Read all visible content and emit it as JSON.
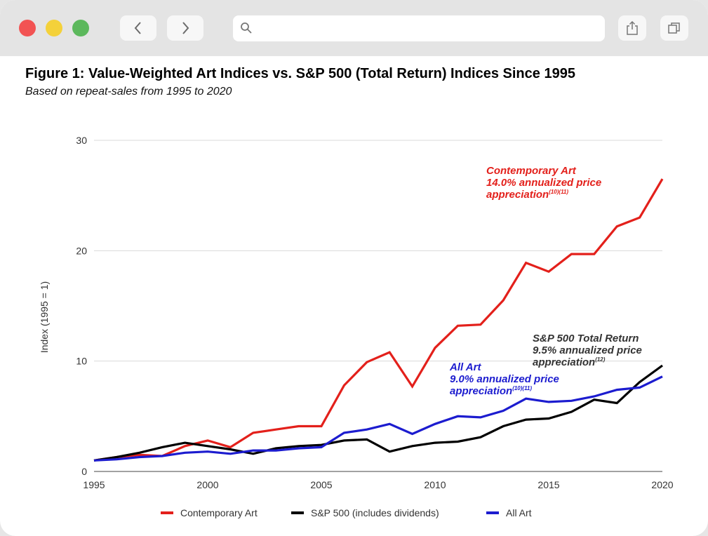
{
  "browser": {
    "address_value": "",
    "icons": {
      "back": "chevron-left-icon",
      "forward": "chevron-right-icon",
      "search": "search-icon",
      "share": "share-icon",
      "tabs": "tabs-icon"
    }
  },
  "figure": {
    "title": "Figure 1: Value-Weighted Art Indices vs. S&P 500 (Total Return) Indices Since 1995",
    "subtitle": "Based on repeat-sales from 1995 to 2020"
  },
  "chart_data": {
    "type": "line",
    "ylabel": "Index (1995 = 1)",
    "xlim": [
      1995,
      2020
    ],
    "ylim": [
      0,
      30
    ],
    "x_ticks": [
      1995,
      2000,
      2005,
      2010,
      2015,
      2020
    ],
    "y_ticks": [
      0,
      10,
      20,
      30
    ],
    "grid": true,
    "legend_position": "bottom-center",
    "x": [
      1995,
      1996,
      1997,
      1998,
      1999,
      2000,
      2001,
      2002,
      2003,
      2004,
      2005,
      2006,
      2007,
      2008,
      2009,
      2010,
      2011,
      2012,
      2013,
      2014,
      2015,
      2016,
      2017,
      2018,
      2019,
      2020
    ],
    "series": [
      {
        "name": "Contemporary Art",
        "color": "#e3201b",
        "values": [
          1.0,
          1.3,
          1.5,
          1.4,
          2.3,
          2.8,
          2.2,
          3.5,
          3.8,
          4.1,
          4.1,
          7.8,
          9.9,
          10.8,
          7.7,
          11.2,
          13.2,
          13.3,
          15.5,
          18.9,
          18.1,
          19.7,
          19.7,
          22.2,
          23.0,
          26.5
        ]
      },
      {
        "name": "S&P 500 (includes dividends)",
        "color": "#000000",
        "values": [
          1.0,
          1.3,
          1.7,
          2.2,
          2.6,
          2.3,
          2.0,
          1.6,
          2.1,
          2.3,
          2.4,
          2.8,
          2.9,
          1.8,
          2.3,
          2.6,
          2.7,
          3.1,
          4.1,
          4.7,
          4.8,
          5.4,
          6.5,
          6.2,
          8.1,
          9.6
        ]
      },
      {
        "name": "All Art",
        "color": "#1c1ccf",
        "values": [
          1.0,
          1.1,
          1.3,
          1.4,
          1.7,
          1.8,
          1.6,
          1.9,
          1.9,
          2.1,
          2.2,
          3.5,
          3.8,
          4.3,
          3.4,
          4.3,
          5.0,
          4.9,
          5.5,
          6.6,
          6.3,
          6.4,
          6.8,
          7.4,
          7.6,
          8.6
        ]
      }
    ],
    "annotations": [
      {
        "series": "Contemporary Art",
        "color": "#e3201b",
        "lines": [
          "Contemporary Art",
          "14.0% annualized price",
          "appreciation"
        ],
        "superscript": "(10)(11)"
      },
      {
        "series": "S&P 500 (includes dividends)",
        "color": "#333333",
        "lines": [
          "S&P 500 Total Return",
          "9.5% annualized price",
          "appreciation"
        ],
        "superscript": "(12)"
      },
      {
        "series": "All Art",
        "color": "#1c1ccf",
        "lines": [
          "All Art",
          "9.0% annualized price",
          "appreciation"
        ],
        "superscript": "(10)(11)"
      }
    ]
  }
}
